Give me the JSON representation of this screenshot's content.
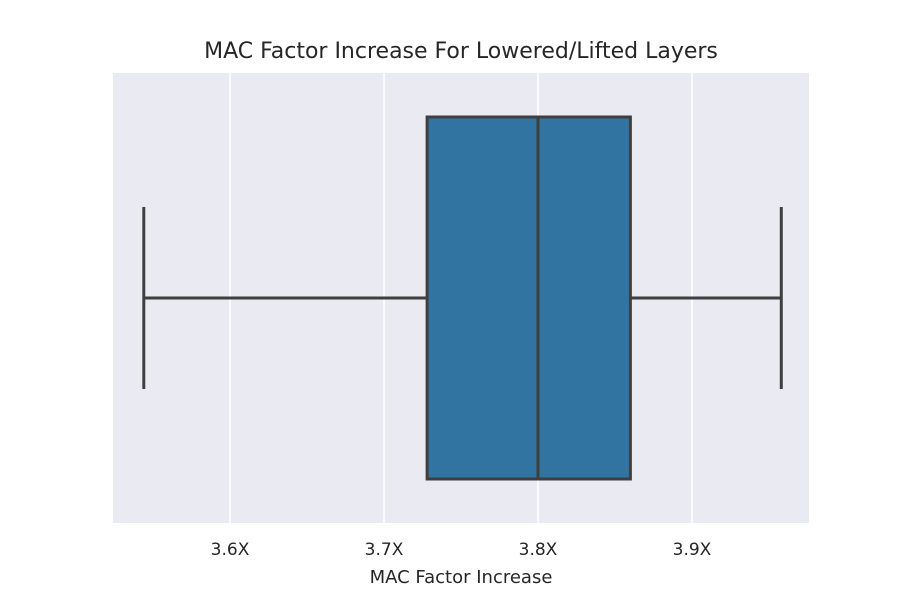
{
  "chart_data": {
    "type": "box",
    "title": "MAC Factor Increase For Lowered/Lifted Layers",
    "xlabel": "MAC Factor Increase",
    "ylabel": "",
    "orientation": "horizontal",
    "xlim": [
      3.524,
      3.976
    ],
    "ticks": [
      {
        "value": 3.6,
        "label": "3.6X"
      },
      {
        "value": 3.7,
        "label": "3.7X"
      },
      {
        "value": 3.8,
        "label": "3.8X"
      },
      {
        "value": 3.9,
        "label": "3.9X"
      }
    ],
    "box": {
      "whisker_low": 3.544,
      "q1": 3.728,
      "median": 3.8,
      "q3": 3.86,
      "whisker_high": 3.958
    },
    "grid": true,
    "colors": {
      "background": "#eaeaf2",
      "grid": "#ffffff",
      "box_fill": "#3274a1",
      "line": "#3f3f3f",
      "text": "#262626"
    }
  }
}
